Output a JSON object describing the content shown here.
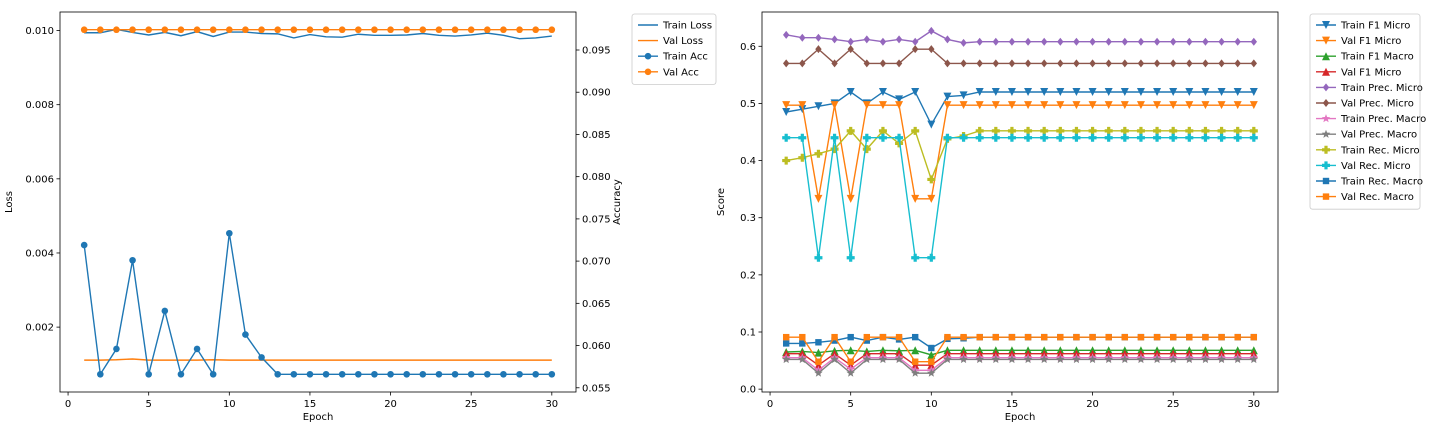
{
  "chart_data": [
    {
      "type": "line",
      "xlabel": "Epoch",
      "ylabel": "Loss",
      "ylabel_right": "Accuracy",
      "xlim": [
        -0.5,
        31.5
      ],
      "ylim": [
        0.00025,
        0.0105
      ],
      "ylim_right": [
        0.0545,
        0.0995
      ],
      "x_ticks": [
        0,
        5,
        10,
        15,
        20,
        25,
        30
      ],
      "y_ticks": [
        0.002,
        0.004,
        0.006,
        0.008,
        0.01
      ],
      "y_tick_labels": [
        "0.002",
        "0.004",
        "0.006",
        "0.008",
        "0.010"
      ],
      "y_ticks_right": [
        0.055,
        0.06,
        0.065,
        0.07,
        0.075,
        0.08,
        0.085,
        0.09,
        0.095
      ],
      "y_tick_labels_right": [
        "0.055",
        "0.060",
        "0.065",
        "0.070",
        "0.075",
        "0.080",
        "0.085",
        "0.090",
        "0.095"
      ],
      "legend_position": "outside-right-top",
      "grid": false,
      "x": [
        1,
        2,
        3,
        4,
        5,
        6,
        7,
        8,
        9,
        10,
        11,
        12,
        13,
        14,
        15,
        16,
        17,
        18,
        19,
        20,
        21,
        22,
        23,
        24,
        25,
        26,
        27,
        28,
        29,
        30
      ],
      "series": [
        {
          "name": "Train Loss",
          "axis": "left",
          "color": "#1f77b4",
          "marker": "none",
          "values": [
            0.00994,
            0.00994,
            0.01003,
            0.00995,
            0.00988,
            0.00995,
            0.00986,
            0.00997,
            0.00984,
            0.00996,
            0.00996,
            0.00992,
            0.00991,
            0.0098,
            0.00989,
            0.00983,
            0.00982,
            0.0099,
            0.00987,
            0.00987,
            0.00988,
            0.00992,
            0.00987,
            0.00985,
            0.00988,
            0.00993,
            0.00987,
            0.00978,
            0.0098,
            0.00985
          ]
        },
        {
          "name": "Val Loss",
          "axis": "left",
          "color": "#ff7f0e",
          "marker": "none",
          "values": [
            0.00111,
            0.00111,
            0.00112,
            0.00114,
            0.00111,
            0.00111,
            0.00111,
            0.00111,
            0.00112,
            0.00111,
            0.00111,
            0.00111,
            0.00111,
            0.00111,
            0.00111,
            0.00111,
            0.00111,
            0.00111,
            0.00111,
            0.00111,
            0.00111,
            0.00111,
            0.00111,
            0.00111,
            0.00111,
            0.00111,
            0.00111,
            0.00111,
            0.00111,
            0.00111
          ]
        },
        {
          "name": "Train Acc",
          "axis": "right",
          "color": "#1f77b4",
          "marker": "circle",
          "values": [
            0.0719,
            0.0566,
            0.0596,
            0.0701,
            0.0566,
            0.0641,
            0.0566,
            0.0596,
            0.0566,
            0.0733,
            0.0613,
            0.0586,
            0.0566,
            0.0566,
            0.0566,
            0.0566,
            0.0566,
            0.0566,
            0.0566,
            0.0566,
            0.0566,
            0.0566,
            0.0566,
            0.0566,
            0.0566,
            0.0566,
            0.0566,
            0.0566,
            0.0566,
            0.0566
          ]
        },
        {
          "name": "Val Acc",
          "axis": "right",
          "color": "#ff7f0e",
          "marker": "circle",
          "values": [
            0.0974,
            0.0974,
            0.0974,
            0.0974,
            0.0974,
            0.0974,
            0.0974,
            0.0974,
            0.0974,
            0.0974,
            0.0974,
            0.0974,
            0.0974,
            0.0974,
            0.0974,
            0.0974,
            0.0974,
            0.0974,
            0.0974,
            0.0974,
            0.0974,
            0.0974,
            0.0974,
            0.0974,
            0.0974,
            0.0974,
            0.0974,
            0.0974,
            0.0974,
            0.0974
          ]
        }
      ]
    },
    {
      "type": "line",
      "xlabel": "Epoch",
      "ylabel": "Score",
      "xlim": [
        -0.5,
        31.5
      ],
      "ylim": [
        -0.005,
        0.66
      ],
      "x_ticks": [
        0,
        5,
        10,
        15,
        20,
        25,
        30
      ],
      "y_ticks": [
        0.0,
        0.1,
        0.2,
        0.3,
        0.4,
        0.5,
        0.6
      ],
      "y_tick_labels": [
        "0.0",
        "0.1",
        "0.2",
        "0.3",
        "0.4",
        "0.5",
        "0.6"
      ],
      "legend_position": "outside-right-top",
      "grid": false,
      "x": [
        1,
        2,
        3,
        4,
        5,
        6,
        7,
        8,
        9,
        10,
        11,
        12,
        13,
        14,
        15,
        16,
        17,
        18,
        19,
        20,
        21,
        22,
        23,
        24,
        25,
        26,
        27,
        28,
        29,
        30
      ],
      "series": [
        {
          "name": "Train F1 Micro",
          "color": "#1f77b4",
          "marker": "triangle-down",
          "values": [
            0.485,
            0.49,
            0.495,
            0.5,
            0.52,
            0.5,
            0.52,
            0.507,
            0.52,
            0.463,
            0.512,
            0.514,
            0.52,
            0.52,
            0.52,
            0.52,
            0.52,
            0.52,
            0.52,
            0.52,
            0.52,
            0.52,
            0.52,
            0.52,
            0.52,
            0.52,
            0.52,
            0.52,
            0.52,
            0.52
          ]
        },
        {
          "name": "Val F1 Micro",
          "color": "#ff7f0e",
          "marker": "triangle-down",
          "values": [
            0.497,
            0.497,
            0.333,
            0.497,
            0.333,
            0.497,
            0.497,
            0.497,
            0.333,
            0.333,
            0.497,
            0.497,
            0.497,
            0.497,
            0.497,
            0.497,
            0.497,
            0.497,
            0.497,
            0.497,
            0.497,
            0.497,
            0.497,
            0.497,
            0.497,
            0.497,
            0.497,
            0.497,
            0.497,
            0.497
          ]
        },
        {
          "name": "Train F1 Macro",
          "color": "#2ca02c",
          "marker": "triangle-up",
          "values": [
            0.065,
            0.066,
            0.064,
            0.067,
            0.068,
            0.066,
            0.068,
            0.067,
            0.068,
            0.06,
            0.068,
            0.068,
            0.068,
            0.068,
            0.068,
            0.068,
            0.068,
            0.068,
            0.068,
            0.068,
            0.068,
            0.068,
            0.068,
            0.068,
            0.068,
            0.068,
            0.068,
            0.068,
            0.068,
            0.068
          ]
        },
        {
          "name": "Val F1 Micro",
          "color": "#d62728",
          "marker": "triangle-up",
          "values": [
            0.062,
            0.062,
            0.042,
            0.062,
            0.042,
            0.062,
            0.062,
            0.062,
            0.042,
            0.042,
            0.062,
            0.062,
            0.062,
            0.062,
            0.062,
            0.062,
            0.062,
            0.062,
            0.062,
            0.062,
            0.062,
            0.062,
            0.062,
            0.062,
            0.062,
            0.062,
            0.062,
            0.062,
            0.062,
            0.062
          ]
        },
        {
          "name": "Train Prec. Micro",
          "color": "#9467bd",
          "marker": "diamond",
          "values": [
            0.62,
            0.615,
            0.615,
            0.612,
            0.608,
            0.612,
            0.608,
            0.612,
            0.608,
            0.627,
            0.612,
            0.606,
            0.608,
            0.608,
            0.608,
            0.608,
            0.608,
            0.608,
            0.608,
            0.608,
            0.608,
            0.608,
            0.608,
            0.608,
            0.608,
            0.608,
            0.608,
            0.608,
            0.608,
            0.608
          ]
        },
        {
          "name": "Val Prec. Micro",
          "color": "#8c564b",
          "marker": "diamond",
          "values": [
            0.57,
            0.57,
            0.595,
            0.57,
            0.595,
            0.57,
            0.57,
            0.57,
            0.595,
            0.595,
            0.57,
            0.57,
            0.57,
            0.57,
            0.57,
            0.57,
            0.57,
            0.57,
            0.57,
            0.57,
            0.57,
            0.57,
            0.57,
            0.57,
            0.57,
            0.57,
            0.57,
            0.57,
            0.57,
            0.57
          ]
        },
        {
          "name": "Train Prec. Macro",
          "color": "#e377c2",
          "marker": "star",
          "values": [
            0.055,
            0.055,
            0.033,
            0.055,
            0.035,
            0.055,
            0.055,
            0.055,
            0.033,
            0.033,
            0.055,
            0.055,
            0.055,
            0.055,
            0.055,
            0.055,
            0.055,
            0.055,
            0.055,
            0.055,
            0.055,
            0.055,
            0.055,
            0.055,
            0.055,
            0.055,
            0.055,
            0.055,
            0.055,
            0.055
          ]
        },
        {
          "name": "Val Prec. Macro",
          "color": "#7f7f7f",
          "marker": "star",
          "values": [
            0.052,
            0.052,
            0.028,
            0.052,
            0.028,
            0.052,
            0.052,
            0.052,
            0.028,
            0.028,
            0.052,
            0.052,
            0.052,
            0.052,
            0.052,
            0.052,
            0.052,
            0.052,
            0.052,
            0.052,
            0.052,
            0.052,
            0.052,
            0.052,
            0.052,
            0.052,
            0.052,
            0.052,
            0.052,
            0.052
          ]
        },
        {
          "name": "Train Rec. Micro",
          "color": "#bcbd22",
          "marker": "plus",
          "values": [
            0.4,
            0.405,
            0.412,
            0.42,
            0.452,
            0.42,
            0.452,
            0.43,
            0.452,
            0.367,
            0.438,
            0.443,
            0.452,
            0.452,
            0.452,
            0.452,
            0.452,
            0.452,
            0.452,
            0.452,
            0.452,
            0.452,
            0.452,
            0.452,
            0.452,
            0.452,
            0.452,
            0.452,
            0.452,
            0.452
          ]
        },
        {
          "name": "Val Rec. Micro",
          "color": "#17becf",
          "marker": "plus",
          "values": [
            0.44,
            0.44,
            0.23,
            0.44,
            0.23,
            0.44,
            0.44,
            0.44,
            0.23,
            0.23,
            0.44,
            0.44,
            0.44,
            0.44,
            0.44,
            0.44,
            0.44,
            0.44,
            0.44,
            0.44,
            0.44,
            0.44,
            0.44,
            0.44,
            0.44,
            0.44,
            0.44,
            0.44,
            0.44,
            0.44
          ]
        },
        {
          "name": "Train Rec. Macro",
          "color": "#1f77b4",
          "marker": "square",
          "values": [
            0.08,
            0.08,
            0.082,
            0.085,
            0.091,
            0.085,
            0.091,
            0.087,
            0.091,
            0.072,
            0.088,
            0.089,
            0.091,
            0.091,
            0.091,
            0.091,
            0.091,
            0.091,
            0.091,
            0.091,
            0.091,
            0.091,
            0.091,
            0.091,
            0.091,
            0.091,
            0.091,
            0.091,
            0.091,
            0.091
          ]
        },
        {
          "name": "Val Rec. Macro",
          "color": "#ff7f0e",
          "marker": "square",
          "values": [
            0.091,
            0.091,
            0.048,
            0.091,
            0.048,
            0.091,
            0.091,
            0.091,
            0.048,
            0.048,
            0.091,
            0.091,
            0.091,
            0.091,
            0.091,
            0.091,
            0.091,
            0.091,
            0.091,
            0.091,
            0.091,
            0.091,
            0.091,
            0.091,
            0.091,
            0.091,
            0.091,
            0.091,
            0.091,
            0.091
          ]
        }
      ]
    }
  ]
}
